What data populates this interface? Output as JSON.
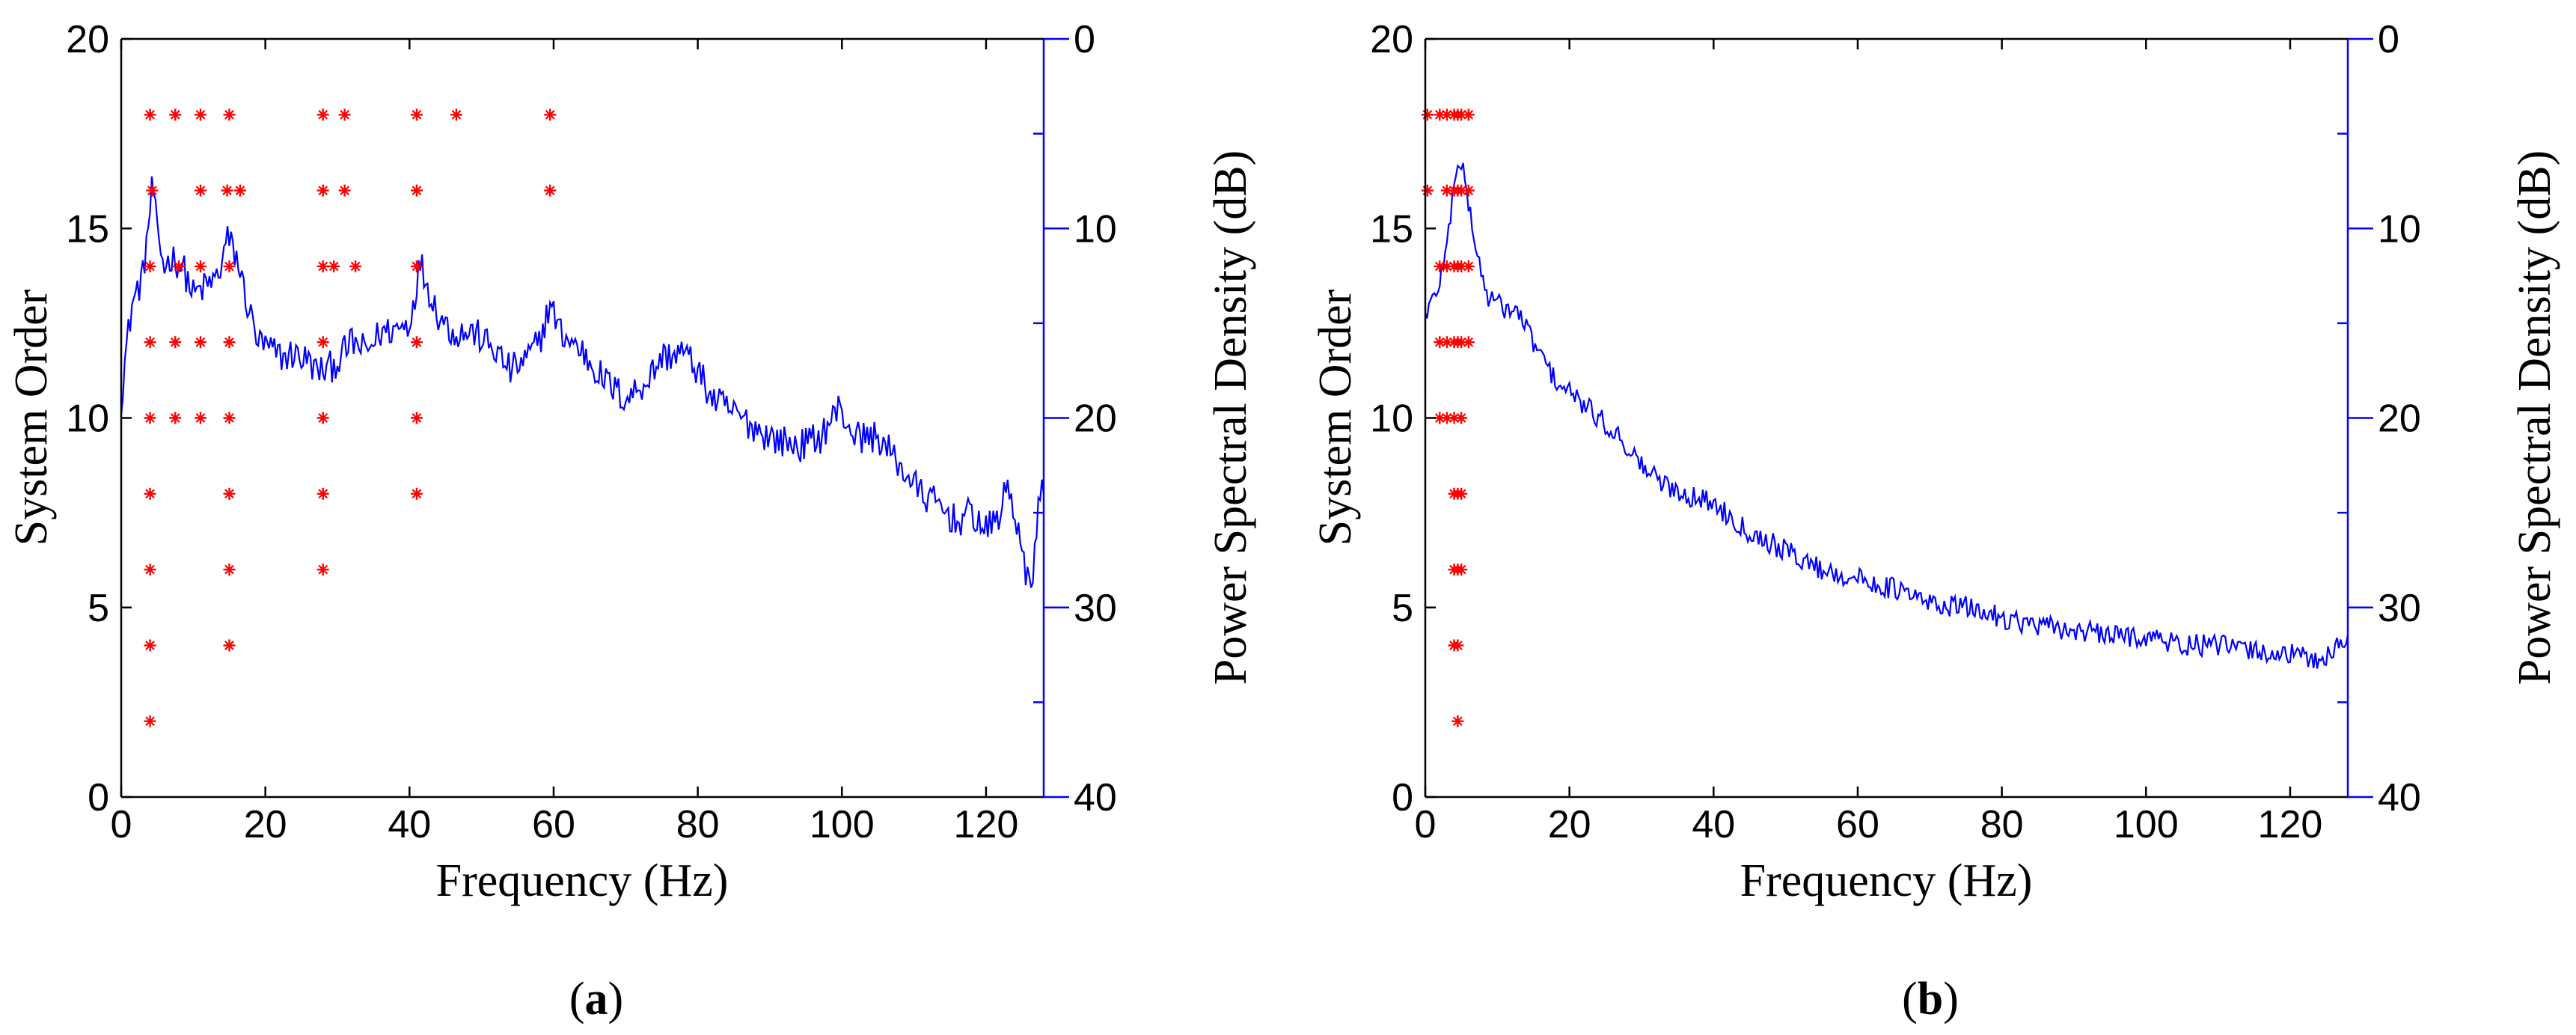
{
  "figure": {
    "panels": [
      {
        "label": "(a)",
        "label_bold": "a"
      },
      {
        "label": "(b)",
        "label_bold": "b"
      }
    ]
  },
  "colors": {
    "stabilization_marker": "#ff0000",
    "psd_line": "#0000ff",
    "axis": "#000000",
    "right_axis": "#0000ff",
    "background": "#ffffff"
  },
  "chart_data": [
    {
      "panel": "a",
      "type": "scatter",
      "xlabel": "Frequency (Hz)",
      "ylabel_left": "System Order",
      "ylabel_right": "Power Spectral Density (dB)",
      "xlim": [
        0,
        128
      ],
      "xticks": [
        0,
        20,
        40,
        60,
        80,
        100,
        120
      ],
      "ylim_left": [
        0,
        20
      ],
      "yticks_left": [
        0,
        5,
        10,
        15,
        20
      ],
      "ylim_right_top_to_bottom": [
        0,
        -40
      ],
      "yticks_right": [
        0,
        -10,
        -20,
        -30,
        -40
      ],
      "ytick_labels_right": [
        "0",
        "10",
        "20",
        "30",
        "40"
      ],
      "series": [
        {
          "name": "Stabilization points",
          "marker": "*",
          "color": "#ff0000",
          "points": [
            [
              4,
              2
            ],
            [
              4,
              4
            ],
            [
              4,
              6
            ],
            [
              4,
              8
            ],
            [
              4,
              10
            ],
            [
              4,
              12
            ],
            [
              4,
              14
            ],
            [
              4.3,
              16
            ],
            [
              4,
              18
            ],
            [
              7.5,
              10
            ],
            [
              7.5,
              12
            ],
            [
              8,
              14
            ],
            [
              7.5,
              18
            ],
            [
              11,
              10
            ],
            [
              11,
              12
            ],
            [
              11,
              14
            ],
            [
              11,
              16
            ],
            [
              11,
              18
            ],
            [
              15,
              4
            ],
            [
              15,
              6
            ],
            [
              15,
              8
            ],
            [
              15,
              10
            ],
            [
              15,
              12
            ],
            [
              15,
              14
            ],
            [
              14.7,
              16
            ],
            [
              15,
              18
            ],
            [
              16.5,
              16
            ],
            [
              28,
              6
            ],
            [
              28,
              8
            ],
            [
              28,
              10
            ],
            [
              28,
              12
            ],
            [
              28,
              14
            ],
            [
              28,
              16
            ],
            [
              28,
              18
            ],
            [
              29.5,
              14
            ],
            [
              31,
              16
            ],
            [
              31,
              18
            ],
            [
              32.5,
              14
            ],
            [
              41,
              8
            ],
            [
              41,
              10
            ],
            [
              41,
              12
            ],
            [
              41,
              14
            ],
            [
              41,
              16
            ],
            [
              41,
              18
            ],
            [
              46.5,
              18
            ],
            [
              59.5,
              16
            ],
            [
              59.5,
              18
            ]
          ]
        },
        {
          "name": "Power Spectral Density",
          "axis": "right",
          "color": "#0000ff",
          "anchors": [
            [
              0,
              -19
            ],
            [
              0.5,
              -17
            ],
            [
              1.5,
              -14
            ],
            [
              3,
              -12.5
            ],
            [
              4,
              -9
            ],
            [
              4.4,
              -7.5
            ],
            [
              5,
              -10.5
            ],
            [
              6,
              -12
            ],
            [
              7,
              -11.5
            ],
            [
              8.5,
              -12
            ],
            [
              10,
              -13.5
            ],
            [
              12,
              -13
            ],
            [
              13.5,
              -12.5
            ],
            [
              14.7,
              -10.5
            ],
            [
              16,
              -11.5
            ],
            [
              17.5,
              -14
            ],
            [
              19,
              -16
            ],
            [
              21,
              -16.5
            ],
            [
              22.5,
              -16.8
            ],
            [
              24,
              -16.6
            ],
            [
              26,
              -17
            ],
            [
              27,
              -17.5
            ],
            [
              28.5,
              -17.5
            ],
            [
              30,
              -17
            ],
            [
              32,
              -16
            ],
            [
              34,
              -16.5
            ],
            [
              36,
              -15.5
            ],
            [
              38,
              -15.3
            ],
            [
              40,
              -15
            ],
            [
              40.8,
              -13.3
            ],
            [
              41.5,
              -11.8
            ],
            [
              42.5,
              -13
            ],
            [
              44,
              -14.5
            ],
            [
              46,
              -15.5
            ],
            [
              49,
              -15.5
            ],
            [
              52,
              -16.5
            ],
            [
              54,
              -17.5
            ],
            [
              56,
              -17
            ],
            [
              58,
              -16
            ],
            [
              59.5,
              -14
            ],
            [
              61,
              -15.5
            ],
            [
              64,
              -16.5
            ],
            [
              67,
              -18
            ],
            [
              70,
              -19
            ],
            [
              73,
              -18
            ],
            [
              75,
              -16.8
            ],
            [
              78,
              -16.5
            ],
            [
              80,
              -17.5
            ],
            [
              82,
              -19
            ],
            [
              86,
              -20
            ],
            [
              90,
              -21
            ],
            [
              94,
              -21.5
            ],
            [
              97,
              -21
            ],
            [
              99.5,
              -19.5
            ],
            [
              102,
              -21
            ],
            [
              105,
              -21
            ],
            [
              108,
              -22.5
            ],
            [
              111,
              -24
            ],
            [
              113,
              -24.5
            ],
            [
              116,
              -25.5
            ],
            [
              118,
              -25
            ],
            [
              120,
              -26
            ],
            [
              122,
              -25
            ],
            [
              123,
              -23.5
            ],
            [
              124,
              -25
            ],
            [
              125.5,
              -28.5
            ],
            [
              126.5,
              -28
            ],
            [
              127.5,
              -24
            ]
          ]
        }
      ]
    },
    {
      "panel": "b",
      "type": "scatter",
      "xlabel": "Frequency (Hz)",
      "ylabel_left": "System Order",
      "ylabel_right": "Power Spectral Density (dB)",
      "xlim": [
        0,
        128
      ],
      "xticks": [
        0,
        20,
        40,
        60,
        80,
        100,
        120
      ],
      "ylim_left": [
        0,
        20
      ],
      "yticks_left": [
        0,
        5,
        10,
        15,
        20
      ],
      "ylim_right_top_to_bottom": [
        0,
        -40
      ],
      "yticks_right": [
        0,
        -10,
        -20,
        -30,
        -40
      ],
      "ytick_labels_right": [
        "0",
        "10",
        "20",
        "30",
        "40"
      ],
      "series": [
        {
          "name": "Stabilization points",
          "marker": "*",
          "color": "#ff0000",
          "points": [
            [
              0.3,
              16
            ],
            [
              0.3,
              18
            ],
            [
              2,
              10
            ],
            [
              2,
              12
            ],
            [
              2,
              14
            ],
            [
              2,
              18
            ],
            [
              3,
              10
            ],
            [
              3,
              12
            ],
            [
              3,
              14
            ],
            [
              3,
              16
            ],
            [
              3,
              18
            ],
            [
              4,
              4
            ],
            [
              4,
              6
            ],
            [
              4,
              8
            ],
            [
              4,
              10
            ],
            [
              4,
              12
            ],
            [
              4,
              14
            ],
            [
              4,
              16
            ],
            [
              4,
              18
            ],
            [
              4.5,
              2
            ],
            [
              4.5,
              4
            ],
            [
              4.5,
              6
            ],
            [
              4.5,
              8
            ],
            [
              4.5,
              12
            ],
            [
              4.5,
              14
            ],
            [
              4.5,
              16
            ],
            [
              4.5,
              18
            ],
            [
              5,
              6
            ],
            [
              5,
              8
            ],
            [
              5,
              10
            ],
            [
              5,
              12
            ],
            [
              5,
              14
            ],
            [
              5,
              16
            ],
            [
              5,
              18
            ],
            [
              6,
              12
            ],
            [
              6,
              14
            ],
            [
              6,
              16
            ],
            [
              6,
              18
            ]
          ]
        },
        {
          "name": "Power Spectral Density",
          "axis": "right",
          "color": "#0000ff",
          "anchors": [
            [
              0,
              -14.5
            ],
            [
              1.5,
              -13.5
            ],
            [
              3,
              -11
            ],
            [
              4,
              -7.5
            ],
            [
              4.6,
              -6.2
            ],
            [
              5.5,
              -7.5
            ],
            [
              7,
              -11
            ],
            [
              8.5,
              -13.5
            ],
            [
              10,
              -14
            ],
            [
              13,
              -14.5
            ],
            [
              15,
              -16
            ],
            [
              18,
              -18
            ],
            [
              21,
              -19
            ],
            [
              24,
              -20
            ],
            [
              27,
              -21
            ],
            [
              30,
              -22.5
            ],
            [
              33,
              -23.5
            ],
            [
              36,
              -24
            ],
            [
              40,
              -24.5
            ],
            [
              45,
              -26
            ],
            [
              50,
              -27
            ],
            [
              55,
              -28
            ],
            [
              60,
              -28.5
            ],
            [
              65,
              -29
            ],
            [
              70,
              -29.8
            ],
            [
              75,
              -30
            ],
            [
              80,
              -30.5
            ],
            [
              85,
              -31
            ],
            [
              90,
              -31.2
            ],
            [
              95,
              -31.5
            ],
            [
              100,
              -31.5
            ],
            [
              105,
              -32
            ],
            [
              110,
              -32
            ],
            [
              115,
              -32.3
            ],
            [
              120,
              -32.5
            ],
            [
              124,
              -32.8
            ],
            [
              127,
              -32
            ],
            [
              128,
              -31.5
            ]
          ]
        }
      ]
    }
  ]
}
